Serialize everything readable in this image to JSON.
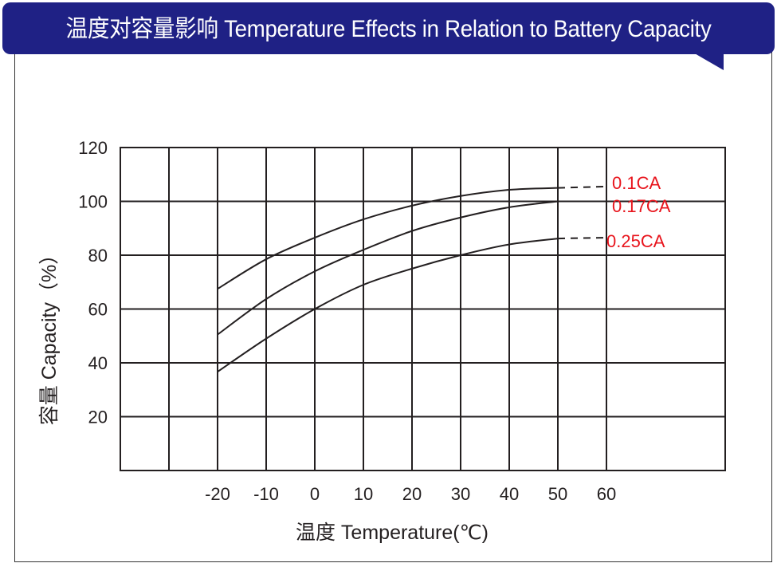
{
  "header": {
    "title": "温度对容量影响  Temperature Effects in Relation to Battery Capacity",
    "color": "#1f2185"
  },
  "chart_data": {
    "type": "line",
    "title": "温度对容量影响  Temperature Effects in Relation to Battery Capacity",
    "xlabel": "温度  Temperature(℃)",
    "ylabel": "容量  Capacity（%）",
    "x_ticks": [
      -20,
      -10,
      0,
      10,
      20,
      30,
      40,
      50,
      60
    ],
    "y_ticks": [
      20,
      40,
      60,
      80,
      100,
      120
    ],
    "xlim": [
      -40,
      85
    ],
    "ylim": [
      0,
      120
    ],
    "grid": true,
    "label_color": "#e8141c",
    "x": [
      -20,
      -10,
      0,
      10,
      20,
      30,
      40,
      50
    ],
    "series": [
      {
        "name": "0.1CA",
        "values": [
          67.5,
          78.5,
          86.5,
          93.3,
          98.4,
          102,
          104.3,
          105
        ],
        "extrapolated": [
          [
            50,
            105
          ],
          [
            60,
            105.5
          ]
        ]
      },
      {
        "name": "0.17CA",
        "values": [
          50.5,
          63.7,
          74,
          82,
          89,
          94,
          97.8,
          100
        ],
        "extrapolated": [
          [
            50,
            100
          ],
          [
            60,
            100
          ]
        ]
      },
      {
        "name": "0.25CA",
        "values": [
          36.7,
          49,
          60,
          69,
          75,
          80,
          84,
          86.2
        ],
        "extrapolated": [
          [
            50,
            86.2
          ],
          [
            60,
            86.5
          ]
        ]
      }
    ]
  }
}
